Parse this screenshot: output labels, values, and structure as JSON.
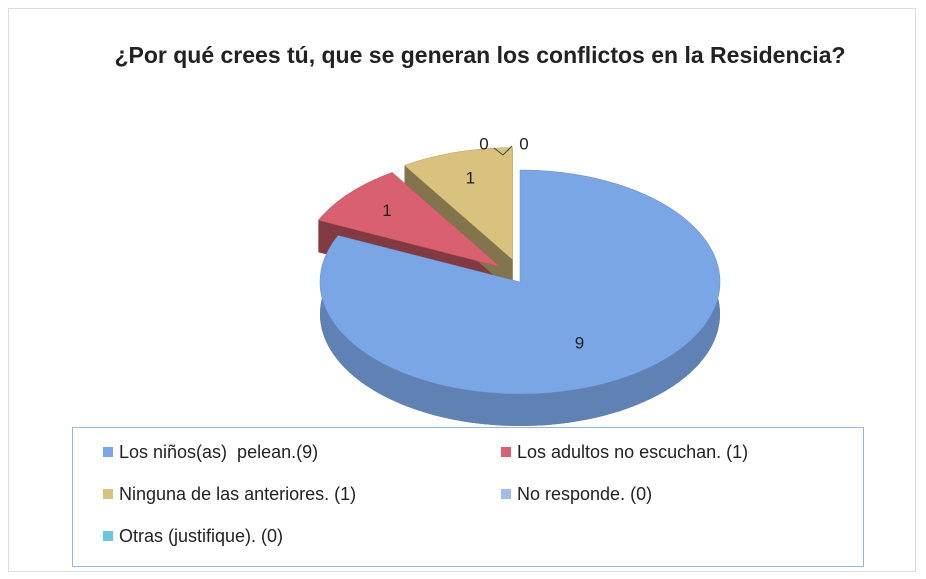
{
  "chart_data": {
    "type": "pie",
    "title": "¿Por qué crees tú, que se generan los conflictos en la Residencia?",
    "categories": [
      "Los niños(as)  pelean.(9)",
      "Los adultos no escuchan. (1)",
      "Ninguna de las anteriores. (1)",
      "No responde. (0)",
      "Otras (justifique). (0)"
    ],
    "values": [
      9,
      1,
      1,
      0,
      0
    ],
    "colors": [
      "#7aa6e6",
      "#d9606e",
      "#d9c27e",
      "#9fbde8",
      "#6fc6dc"
    ],
    "legend": "bottom"
  }
}
